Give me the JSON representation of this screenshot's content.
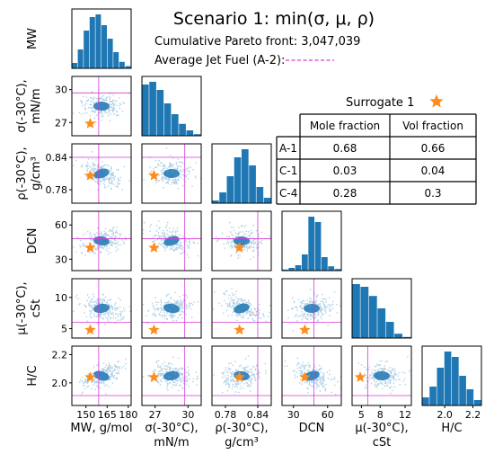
{
  "chart_data": {
    "type": "scatter-matrix",
    "title": "Scenario 1: min(σ, μ, ρ)",
    "pareto_label": "Cumulative Pareto front: 3,047,039",
    "jet_fuel_label": "Average Jet Fuel (A-2):",
    "surrogate_label": "Surrogate 1",
    "colors": {
      "points": "#1f77b4",
      "reference": "#d63ad6",
      "surrogate": "#ff8c1a"
    },
    "variables": [
      {
        "key": "MW",
        "row_label": [
          "MW"
        ],
        "col_label": [
          "MW, g/mol"
        ],
        "range": [
          140,
          182
        ],
        "ticks": [
          {
            "v": 150,
            "label": "150"
          },
          {
            "v": 165,
            "label": "165"
          },
          {
            "v": 180,
            "label": "180"
          }
        ],
        "jet_fuel": 159,
        "surrogate": 153,
        "hist": [
          0.1,
          0.35,
          0.7,
          0.95,
          1.0,
          0.8,
          0.55,
          0.3,
          0.12,
          0.04
        ]
      },
      {
        "key": "sigma",
        "row_label": [
          "σ(-30°C),",
          "mN/m"
        ],
        "col_label": [
          "σ(-30°C),",
          "mN/m"
        ],
        "range": [
          25.8,
          31.2
        ],
        "ticks": [
          {
            "v": 27,
            "label": "27"
          },
          {
            "v": 30,
            "label": "30"
          }
        ],
        "jet_fuel": 29.7,
        "surrogate": 26.9,
        "hist": [
          0.95,
          1.0,
          0.85,
          0.6,
          0.4,
          0.22,
          0.1,
          0.03
        ]
      },
      {
        "key": "rho",
        "row_label": [
          "ρ(-30°C),",
          "g/cm³"
        ],
        "col_label": [
          "ρ(-30°C),",
          "g/cm³"
        ],
        "range": [
          0.755,
          0.865
        ],
        "ticks": [
          {
            "v": 0.78,
            "label": "0.78"
          },
          {
            "v": 0.84,
            "label": "0.84"
          }
        ],
        "jet_fuel": 0.84,
        "surrogate": 0.806,
        "hist": [
          0.05,
          0.2,
          0.5,
          0.85,
          1.0,
          0.7,
          0.3,
          0.1
        ]
      },
      {
        "key": "DCN",
        "row_label": [
          "DCN"
        ],
        "col_label": [
          "DCN"
        ],
        "range": [
          20,
          72
        ],
        "ticks": [
          {
            "v": 30,
            "label": "30"
          },
          {
            "v": 60,
            "label": "60"
          }
        ],
        "jet_fuel": 48,
        "surrogate": 40,
        "hist": [
          0.02,
          0.05,
          0.1,
          0.3,
          1.0,
          0.9,
          0.25,
          0.08,
          0.03
        ]
      },
      {
        "key": "mu",
        "row_label": [
          "μ(-30°C),",
          "cSt"
        ],
        "col_label": [
          "μ(-30°C),",
          "cSt"
        ],
        "range": [
          3.5,
          13
        ],
        "ticks": [
          {
            "v": 5,
            "label": "5"
          },
          {
            "v": 8,
            "label": "8"
          },
          {
            "v": 12,
            "label": "12"
          }
        ],
        "jet_fuel": 6.0,
        "surrogate": 4.8,
        "hist": [
          1.0,
          0.95,
          0.78,
          0.55,
          0.3,
          0.08,
          0.02
        ]
      },
      {
        "key": "HC",
        "row_label": [
          "H/C"
        ],
        "col_label": [
          "H/C"
        ],
        "range": [
          1.84,
          2.26
        ],
        "ticks": [
          {
            "v": 2.0,
            "label": "2.0"
          },
          {
            "v": 2.2,
            "label": "2.2"
          }
        ],
        "jet_fuel": 1.91,
        "surrogate": 2.04,
        "hist": [
          0.15,
          0.35,
          0.7,
          1.0,
          0.9,
          0.55,
          0.3,
          0.1
        ]
      }
    ],
    "row_tick_labels": {
      "1": [
        {
          "v": 30,
          "label": "30"
        },
        {
          "v": 27,
          "label": "27"
        }
      ],
      "2": [
        {
          "v": 0.84,
          "label": "0.84"
        },
        {
          "v": 0.78,
          "label": "0.78"
        }
      ],
      "3": [
        {
          "v": 60,
          "label": "60"
        },
        {
          "v": 30,
          "label": "30"
        }
      ],
      "4": [
        {
          "v": 10,
          "label": "10"
        },
        {
          "v": 5,
          "label": "5"
        }
      ],
      "5": [
        {
          "v": 2.2,
          "label": "2.2"
        },
        {
          "v": 2.0,
          "label": "2.0"
        }
      ]
    },
    "table": {
      "columns": [
        "",
        "Mole fraction",
        "Vol fraction"
      ],
      "rows": [
        [
          "A-1",
          "0.68",
          "0.66"
        ],
        [
          "C-1",
          "0.03",
          "0.04"
        ],
        [
          "C-4",
          "0.28",
          "0.3"
        ]
      ]
    }
  }
}
